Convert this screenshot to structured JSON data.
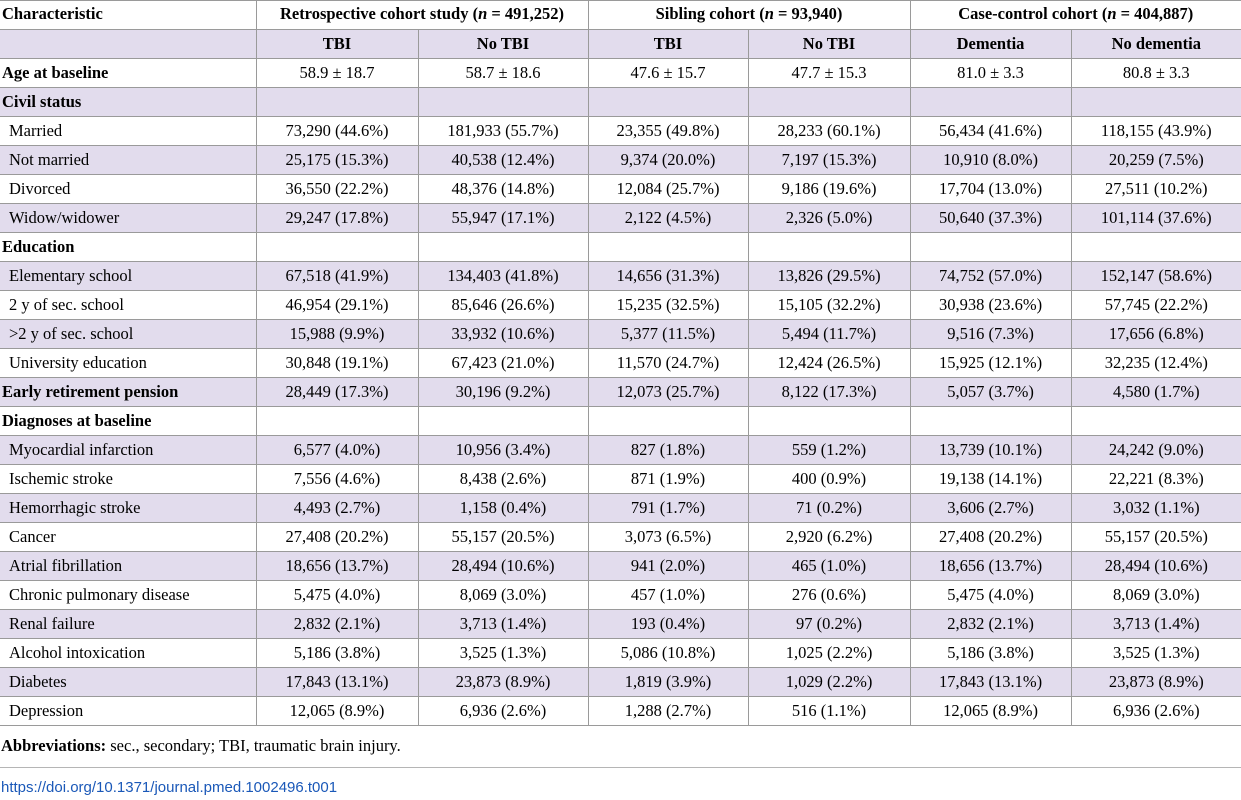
{
  "header": {
    "characteristic": "Characteristic",
    "groups": [
      {
        "prefix": "Retrospective cohort study (",
        "n": "n",
        "suffix": " = 491,252)"
      },
      {
        "prefix": "Sibling cohort (",
        "n": "n",
        "suffix": " = 93,940)"
      },
      {
        "prefix": "Case-control cohort (",
        "n": "n",
        "suffix": " = 404,887)"
      }
    ],
    "subheaders": [
      "TBI",
      "No TBI",
      "TBI",
      "No TBI",
      "Dementia",
      "No dementia"
    ]
  },
  "rows": [
    {
      "label": "Age at baseline",
      "bold": true,
      "values": [
        "58.9 ± 18.7",
        "58.7 ± 18.6",
        "47.6 ± 15.7",
        "47.7 ± 15.3",
        "81.0 ± 3.3",
        "80.8 ± 3.3"
      ]
    },
    {
      "label": "Civil status",
      "bold": true,
      "values": [
        "",
        "",
        "",
        "",
        "",
        ""
      ]
    },
    {
      "label": "Married",
      "values": [
        "73,290 (44.6%)",
        "181,933 (55.7%)",
        "23,355 (49.8%)",
        "28,233 (60.1%)",
        "56,434 (41.6%)",
        "118,155 (43.9%)"
      ]
    },
    {
      "label": "Not married",
      "values": [
        "25,175 (15.3%)",
        "40,538 (12.4%)",
        "9,374 (20.0%)",
        "7,197 (15.3%)",
        "10,910 (8.0%)",
        "20,259 (7.5%)"
      ]
    },
    {
      "label": "Divorced",
      "values": [
        "36,550 (22.2%)",
        "48,376 (14.8%)",
        "12,084 (25.7%)",
        "9,186 (19.6%)",
        "17,704 (13.0%)",
        "27,511 (10.2%)"
      ]
    },
    {
      "label": "Widow/widower",
      "values": [
        "29,247 (17.8%)",
        "55,947 (17.1%)",
        "2,122 (4.5%)",
        "2,326 (5.0%)",
        "50,640 (37.3%)",
        "101,114 (37.6%)"
      ]
    },
    {
      "label": "Education",
      "bold": true,
      "values": [
        "",
        "",
        "",
        "",
        "",
        ""
      ]
    },
    {
      "label": "Elementary school",
      "values": [
        "67,518 (41.9%)",
        "134,403 (41.8%)",
        "14,656 (31.3%)",
        "13,826 (29.5%)",
        "74,752 (57.0%)",
        "152,147 (58.6%)"
      ]
    },
    {
      "label": "2 y of sec. school",
      "values": [
        "46,954 (29.1%)",
        "85,646 (26.6%)",
        "15,235 (32.5%)",
        "15,105 (32.2%)",
        "30,938 (23.6%)",
        "57,745 (22.2%)"
      ]
    },
    {
      "label": ">2 y of sec. school",
      "values": [
        "15,988 (9.9%)",
        "33,932 (10.6%)",
        "5,377 (11.5%)",
        "5,494 (11.7%)",
        "9,516 (7.3%)",
        "17,656 (6.8%)"
      ]
    },
    {
      "label": "University education",
      "values": [
        "30,848 (19.1%)",
        "67,423 (21.0%)",
        "11,570 (24.7%)",
        "12,424 (26.5%)",
        "15,925 (12.1%)",
        "32,235 (12.4%)"
      ]
    },
    {
      "label": "Early retirement pension",
      "bold": true,
      "values": [
        "28,449 (17.3%)",
        "30,196 (9.2%)",
        "12,073 (25.7%)",
        "8,122 (17.3%)",
        "5,057 (3.7%)",
        "4,580 (1.7%)"
      ]
    },
    {
      "label": "Diagnoses at baseline",
      "bold": true,
      "values": [
        "",
        "",
        "",
        "",
        "",
        ""
      ]
    },
    {
      "label": "Myocardial infarction",
      "values": [
        "6,577 (4.0%)",
        "10,956 (3.4%)",
        "827 (1.8%)",
        "559 (1.2%)",
        "13,739 (10.1%)",
        "24,242 (9.0%)"
      ]
    },
    {
      "label": "Ischemic stroke",
      "values": [
        "7,556 (4.6%)",
        "8,438 (2.6%)",
        "871 (1.9%)",
        "400 (0.9%)",
        "19,138 (14.1%)",
        "22,221 (8.3%)"
      ]
    },
    {
      "label": "Hemorrhagic stroke",
      "values": [
        "4,493 (2.7%)",
        "1,158 (0.4%)",
        "791 (1.7%)",
        "71 (0.2%)",
        "3,606 (2.7%)",
        "3,032 (1.1%)"
      ]
    },
    {
      "label": "Cancer",
      "values": [
        "27,408 (20.2%)",
        "55,157 (20.5%)",
        "3,073 (6.5%)",
        "2,920 (6.2%)",
        "27,408 (20.2%)",
        "55,157 (20.5%)"
      ]
    },
    {
      "label": "Atrial fibrillation",
      "values": [
        "18,656 (13.7%)",
        "28,494 (10.6%)",
        "941 (2.0%)",
        "465 (1.0%)",
        "18,656 (13.7%)",
        "28,494 (10.6%)"
      ]
    },
    {
      "label": "Chronic pulmonary disease",
      "values": [
        "5,475 (4.0%)",
        "8,069 (3.0%)",
        "457 (1.0%)",
        "276 (0.6%)",
        "5,475 (4.0%)",
        "8,069 (3.0%)"
      ]
    },
    {
      "label": "Renal failure",
      "values": [
        "2,832 (2.1%)",
        "3,713 (1.4%)",
        "193 (0.4%)",
        "97 (0.2%)",
        "2,832 (2.1%)",
        "3,713 (1.4%)"
      ]
    },
    {
      "label": "Alcohol intoxication",
      "values": [
        "5,186 (3.8%)",
        "3,525 (1.3%)",
        "5,086 (10.8%)",
        "1,025 (2.2%)",
        "5,186 (3.8%)",
        "3,525 (1.3%)"
      ]
    },
    {
      "label": "Diabetes",
      "values": [
        "17,843 (13.1%)",
        "23,873 (8.9%)",
        "1,819 (3.9%)",
        "1,029 (2.2%)",
        "17,843 (13.1%)",
        "23,873 (8.9%)"
      ]
    },
    {
      "label": "Depression",
      "values": [
        "12,065 (8.9%)",
        "6,936 (2.6%)",
        "1,288 (2.7%)",
        "516 (1.1%)",
        "12,065 (8.9%)",
        "6,936 (2.6%)"
      ]
    }
  ],
  "footnote": {
    "bold": "Abbreviations:",
    "text": " sec., secondary; TBI, traumatic brain injury."
  },
  "doi": "https://doi.org/10.1371/journal.pmed.1002496.t001"
}
